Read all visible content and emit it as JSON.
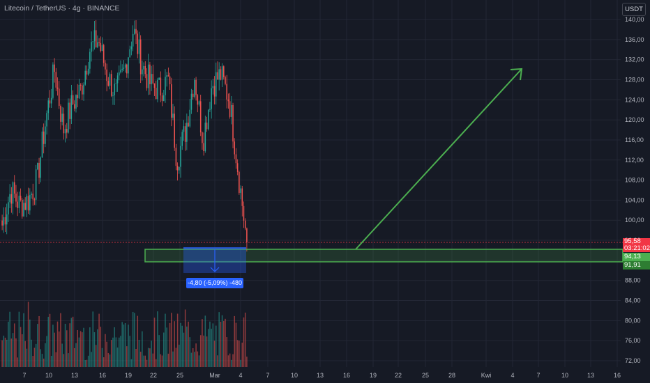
{
  "header": {
    "symbol_title": "Litecoin / TetherUS · 4g · BINANCE",
    "currency": "USDT"
  },
  "price_tags": {
    "last_price": "95,58",
    "countdown": "03:21:02",
    "zone_top": "94,13",
    "zone_bottom": "91,91"
  },
  "measure": {
    "label": "-4,80 (-5,09%) -480"
  },
  "colors": {
    "background": "#161a25",
    "grid": "#232735",
    "up": "#26a69a",
    "down": "#ef5350",
    "annotation": "#4caf50",
    "measure": "#2962ff",
    "last_price": "#f23645"
  },
  "chart_data": {
    "type": "candlestick",
    "title": "Litecoin / TetherUS · 4g · BINANCE",
    "y_unit": "USDT",
    "ylim": [
      70,
      142
    ],
    "y_ticks": [
      72,
      76,
      80,
      84,
      88,
      92,
      96,
      100,
      104,
      108,
      112,
      116,
      120,
      124,
      128,
      132,
      136,
      140
    ],
    "y_tick_labels": [
      "72,00",
      "76,00",
      "80,00",
      "84,00",
      "88,00",
      "92,00",
      "96,00",
      "100,00",
      "104,00",
      "108,00",
      "112,00",
      "116,00",
      "120,00",
      "124,00",
      "128,00",
      "132,00",
      "136,00",
      "140,00"
    ],
    "x_ticks": [
      "7",
      "10",
      "13",
      "16",
      "19",
      "22",
      "25",
      "Mar",
      "4",
      "7",
      "10",
      "13",
      "16",
      "19",
      "22",
      "25",
      "28",
      "Kwi",
      "4",
      "7",
      "10",
      "13",
      "16"
    ],
    "grid": true,
    "price_path": [
      [
        "Feb 5",
        99
      ],
      [
        "Feb 6",
        106
      ],
      [
        "Feb 7",
        103
      ],
      [
        "Feb 8",
        104
      ],
      [
        "Feb 9",
        108
      ],
      [
        "Feb 10",
        120
      ],
      [
        "Feb 11",
        130
      ],
      [
        "Feb 12",
        118
      ],
      [
        "Feb 13",
        123
      ],
      [
        "Feb 14",
        126
      ],
      [
        "Feb 15",
        134
      ],
      [
        "Feb 16",
        136
      ],
      [
        "Feb 17",
        129
      ],
      [
        "Feb 18",
        125
      ],
      [
        "Feb 19",
        130
      ],
      [
        "Feb 20",
        138
      ],
      [
        "Feb 21",
        131
      ],
      [
        "Feb 22",
        127
      ],
      [
        "Feb 23",
        126
      ],
      [
        "Feb 24",
        128
      ],
      [
        "Feb 25",
        112
      ],
      [
        "Feb 26",
        118
      ],
      [
        "Feb 27",
        129
      ],
      [
        "Feb 28",
        116
      ],
      [
        "Mar 1",
        127
      ],
      [
        "Mar 2",
        129
      ],
      [
        "Mar 3",
        124
      ],
      [
        "Mar 4",
        110
      ],
      [
        "Mar 5",
        95.58
      ]
    ],
    "last_price": 95.58,
    "support_zone": [
      91.91,
      94.13
    ],
    "measured_move": {
      "change": -4.8,
      "percent": -5.09,
      "ticks": -480
    },
    "projection": {
      "from": [
        [
          "Mar 16",
          94.13
        ]
      ],
      "to": [
        [
          "Kwi 5",
          130
        ]
      ]
    },
    "volume": {
      "max_relative": 1.0
    }
  }
}
